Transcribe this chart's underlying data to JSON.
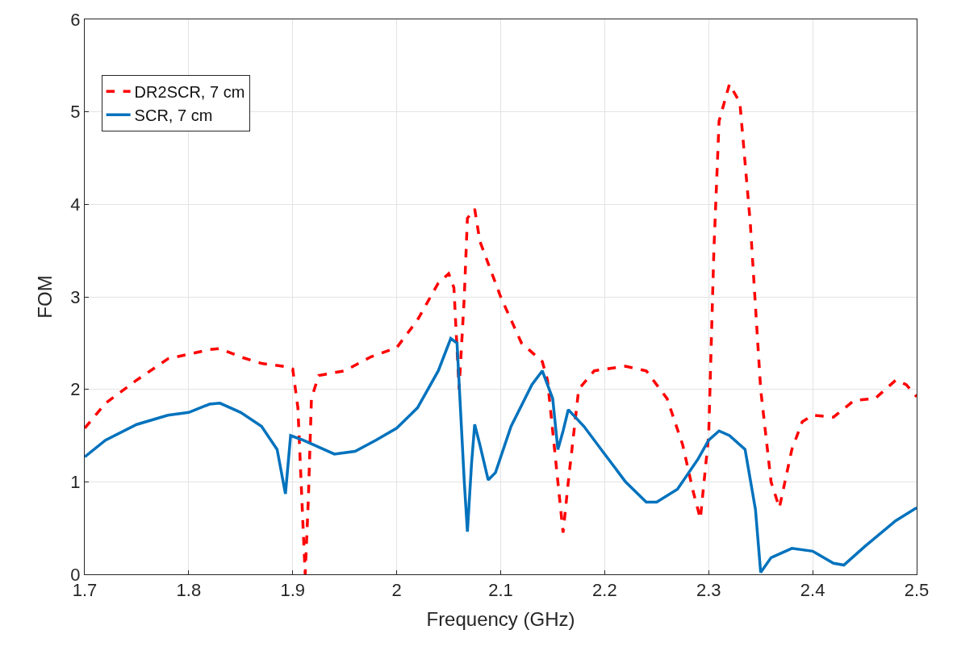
{
  "chart_data": {
    "type": "line",
    "xlabel": "Frequency (GHz)",
    "ylabel": "FOM",
    "xlim": [
      1.7,
      2.5
    ],
    "xticks": [
      1.7,
      1.8,
      1.9,
      2,
      2.1,
      2.2,
      2.3,
      2.4,
      2.5
    ],
    "ylim": [
      0,
      6
    ],
    "yticks": [
      0,
      1,
      2,
      3,
      4,
      5,
      6
    ],
    "grid": true,
    "legend": "top left",
    "series": [
      {
        "name": "DR2SCR, 7 cm",
        "color": "#ff0000",
        "line_style": "dashed",
        "x": [
          1.7,
          1.72,
          1.75,
          1.78,
          1.8,
          1.82,
          1.83,
          1.85,
          1.87,
          1.89,
          1.9,
          1.905,
          1.91,
          1.912,
          1.915,
          1.918,
          1.925,
          1.95,
          1.975,
          2.0,
          2.02,
          2.04,
          2.05,
          2.055,
          2.06,
          2.065,
          2.068,
          2.075,
          2.08,
          2.1,
          2.12,
          2.14,
          2.145,
          2.155,
          2.16,
          2.165,
          2.175,
          2.19,
          2.22,
          2.24,
          2.26,
          2.275,
          2.285,
          2.292,
          2.3,
          2.305,
          2.31,
          2.32,
          2.33,
          2.34,
          2.35,
          2.36,
          2.368,
          2.38,
          2.39,
          2.4,
          2.42,
          2.44,
          2.46,
          2.48,
          2.49,
          2.5
        ],
        "values": [
          1.58,
          1.85,
          2.1,
          2.33,
          2.38,
          2.43,
          2.44,
          2.35,
          2.28,
          2.25,
          2.22,
          1.8,
          0.5,
          0.0,
          0.8,
          1.9,
          2.15,
          2.2,
          2.35,
          2.45,
          2.75,
          3.15,
          3.25,
          3.1,
          2.0,
          3.0,
          3.85,
          3.95,
          3.6,
          3.0,
          2.5,
          2.3,
          2.1,
          1.0,
          0.45,
          1.0,
          2.0,
          2.2,
          2.25,
          2.2,
          1.9,
          1.4,
          0.9,
          0.6,
          1.5,
          3.5,
          4.9,
          5.3,
          5.1,
          3.8,
          2.0,
          1.0,
          0.72,
          1.35,
          1.65,
          1.72,
          1.7,
          1.88,
          1.9,
          2.1,
          2.05,
          1.92
        ]
      },
      {
        "name": "SCR, 7 cm",
        "color": "#0072bd",
        "line_style": "solid",
        "x": [
          1.7,
          1.72,
          1.75,
          1.78,
          1.8,
          1.82,
          1.83,
          1.85,
          1.87,
          1.885,
          1.893,
          1.898,
          1.91,
          1.94,
          1.96,
          1.98,
          2.0,
          2.02,
          2.04,
          2.052,
          2.058,
          2.065,
          2.068,
          2.072,
          2.075,
          2.08,
          2.088,
          2.095,
          2.11,
          2.13,
          2.14,
          2.15,
          2.155,
          2.16,
          2.165,
          2.18,
          2.2,
          2.22,
          2.24,
          2.25,
          2.27,
          2.29,
          2.3,
          2.31,
          2.32,
          2.335,
          2.345,
          2.35,
          2.36,
          2.38,
          2.4,
          2.42,
          2.43,
          2.45,
          2.48,
          2.5
        ],
        "values": [
          1.27,
          1.45,
          1.62,
          1.72,
          1.75,
          1.84,
          1.85,
          1.75,
          1.6,
          1.35,
          0.87,
          1.5,
          1.45,
          1.3,
          1.33,
          1.45,
          1.58,
          1.8,
          2.2,
          2.55,
          2.5,
          1.0,
          0.46,
          1.2,
          1.62,
          1.4,
          1.02,
          1.1,
          1.6,
          2.05,
          2.2,
          1.9,
          1.35,
          1.55,
          1.78,
          1.6,
          1.3,
          1.0,
          0.78,
          0.78,
          0.92,
          1.25,
          1.45,
          1.55,
          1.5,
          1.35,
          0.7,
          0.02,
          0.18,
          0.28,
          0.25,
          0.12,
          0.1,
          0.3,
          0.58,
          0.72
        ]
      }
    ]
  }
}
